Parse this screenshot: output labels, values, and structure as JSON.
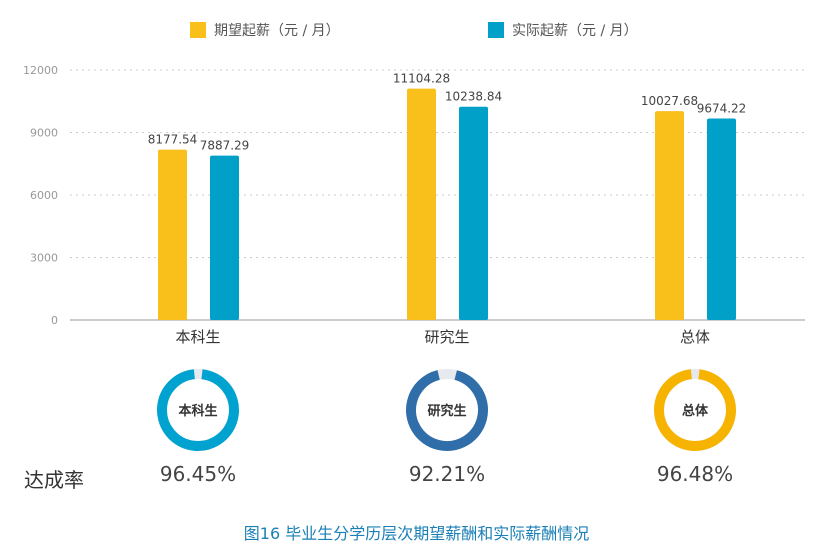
{
  "chart_data": {
    "type": "bar",
    "categories": [
      "本科生",
      "研究生",
      "总体"
    ],
    "series": [
      {
        "name": "期望起薪（元 / 月）",
        "color": "#f9bf1b",
        "values": [
          8177.54,
          11104.28,
          10027.68
        ]
      },
      {
        "name": "实际起薪（元 / 月）",
        "color": "#00a0c9",
        "values": [
          7887.29,
          10238.84,
          9674.22
        ]
      }
    ],
    "ylim": [
      0,
      12000
    ],
    "yticks": [
      "0",
      "3000",
      "6000",
      "9000",
      "12000"
    ],
    "grid": true,
    "legend": "top",
    "data_labels": [
      [
        "8177.54",
        "11104.28",
        "10027.68"
      ],
      [
        "7887.29",
        "10238.84",
        "9674.22"
      ]
    ]
  },
  "rates": {
    "label": "达成率",
    "items": [
      {
        "name": "本科生",
        "value": "96.45%",
        "fraction": 0.9645,
        "color": "#00a3d0"
      },
      {
        "name": "研究生",
        "value": "92.21%",
        "fraction": 0.9221,
        "color": "#2f6ea8"
      },
      {
        "name": "总体",
        "value": "96.48%",
        "fraction": 0.9648,
        "color": "#f6b300"
      }
    ]
  },
  "caption": "图16  毕业生分学历层次期望薪酬和实际薪酬情况"
}
